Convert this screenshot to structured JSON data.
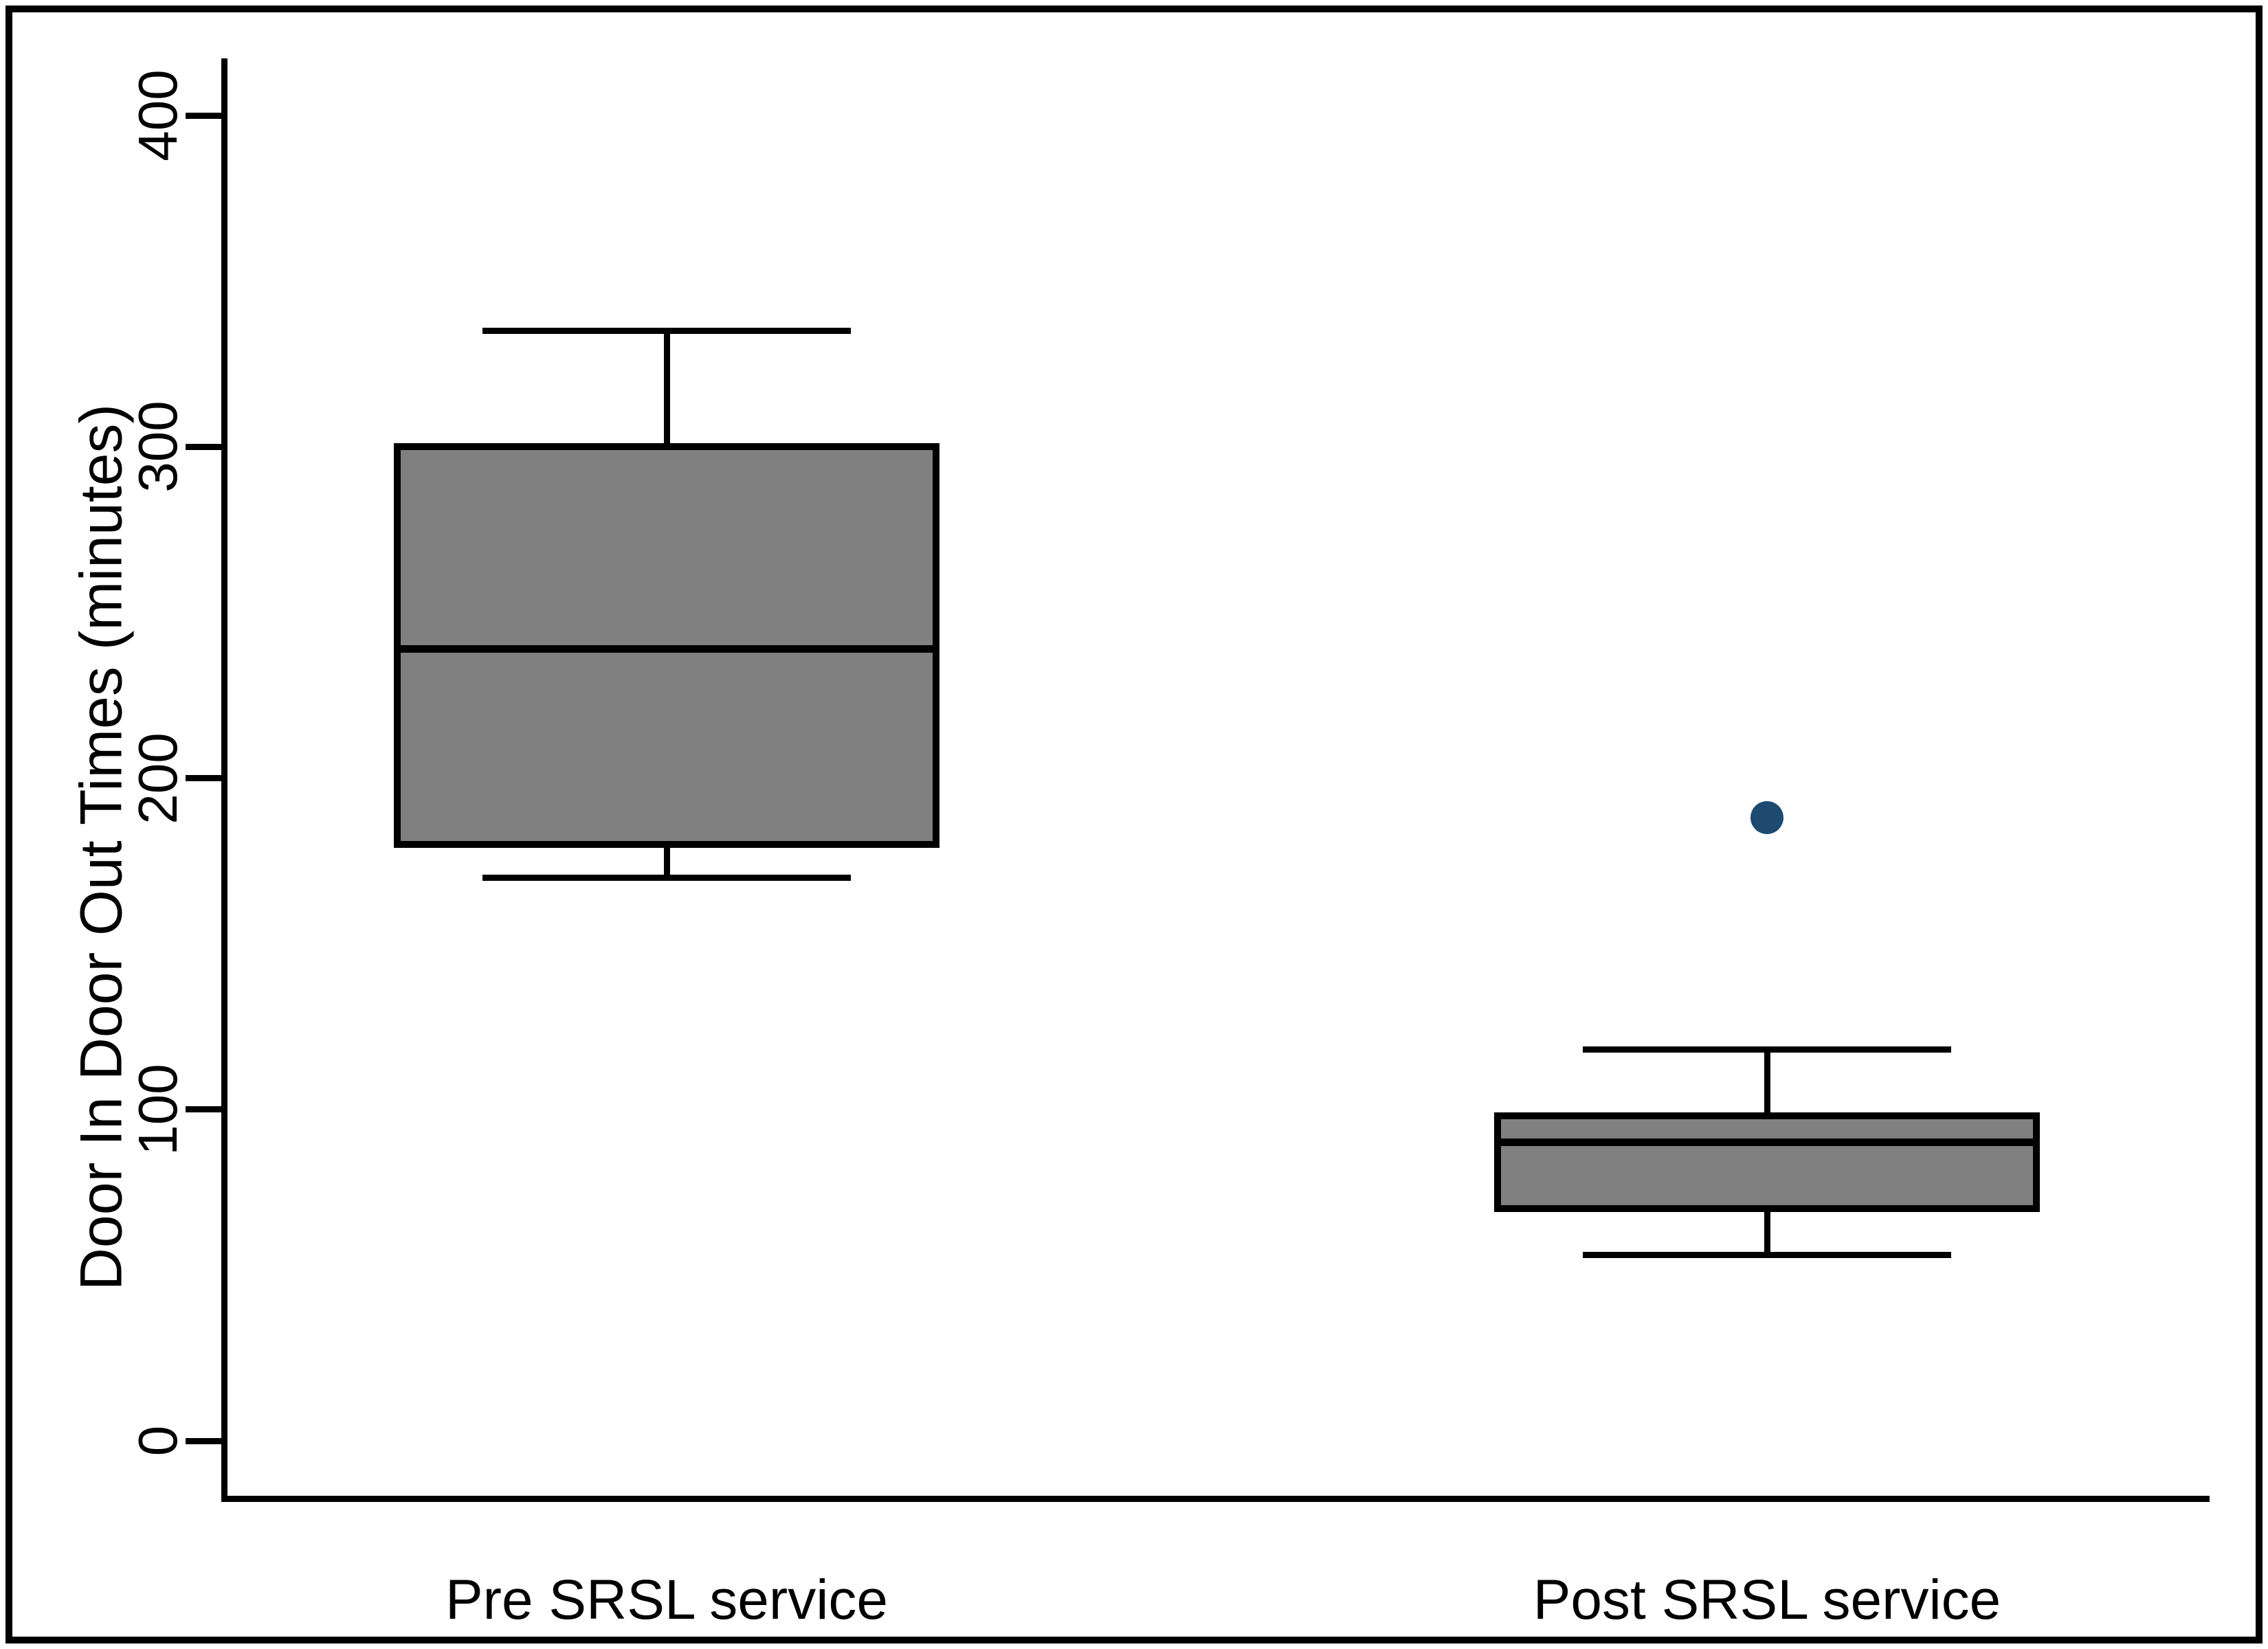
{
  "figure": {
    "background_color": "#ffffff",
    "border_color": "#000000"
  },
  "chart_data": {
    "type": "box",
    "title": "",
    "xlabel": "",
    "ylabel": "Door In Door Out Times (minutes)",
    "categories": [
      "Pre SRSL service",
      "Post SRSL service"
    ],
    "y_ticks": [
      0,
      100,
      200,
      300,
      400
    ],
    "ylim": [
      -17,
      417
    ],
    "grid": false,
    "legend": false,
    "units": "minutes",
    "series": [
      {
        "name": "Pre SRSL service",
        "whisker_low": 170,
        "q1": 180,
        "median": 239,
        "q3": 300,
        "whisker_high": 335,
        "outliers": []
      },
      {
        "name": "Post SRSL service",
        "whisker_low": 56,
        "q1": 70,
        "median": 90,
        "q3": 98,
        "whisker_high": 118,
        "outliers": [
          188
        ]
      }
    ],
    "colors": {
      "box_fill": "#808080",
      "line": "#000000",
      "outlier_fill": "#1e4a72"
    }
  }
}
